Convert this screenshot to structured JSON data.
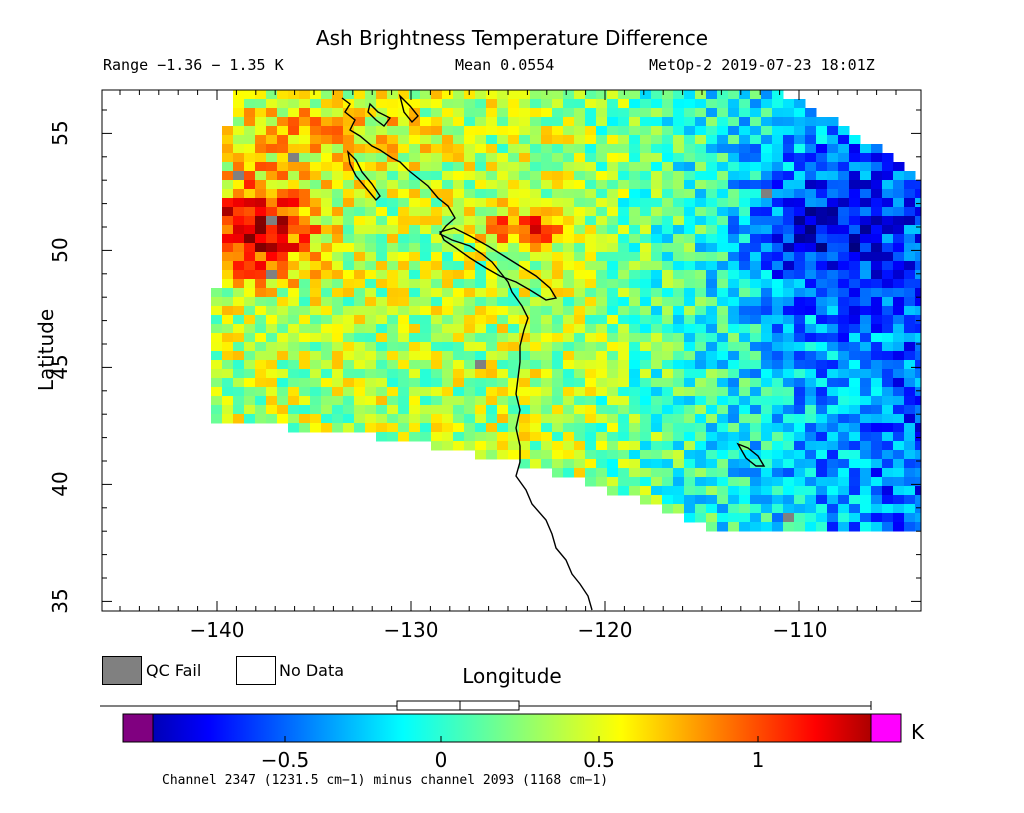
{
  "title": "Ash Brightness Temperature Difference",
  "header": {
    "range": "Range −1.36 − 1.35 K",
    "mean": "Mean 0.0554",
    "platform": "MetOp-2 2019-07-23 18:01Z"
  },
  "axes": {
    "x_label": "Longitude",
    "y_label": "Latitude",
    "x_ticks": [
      "−140",
      "−130",
      "−120",
      "−110"
    ],
    "y_ticks": [
      "55",
      "50",
      "45",
      "40",
      "35"
    ],
    "x_range": [
      -145.5,
      -104
    ],
    "y_range": [
      34.5,
      56.8
    ]
  },
  "legend": {
    "qc_fail": "QC Fail",
    "no_data": "No Data",
    "qc_fail_color": "#808080",
    "no_data_color": "#ffffff"
  },
  "colorbar": {
    "unit": "K",
    "ticks": [
      "−0.5",
      "0",
      "0.5",
      "1"
    ],
    "tick_values": [
      -0.5,
      0,
      0.5,
      1
    ],
    "range": [
      -1.36,
      1.35
    ],
    "under_color": "#800080",
    "over_color": "#ff00ff",
    "boxplot": {
      "min": -1.36,
      "q1": -0.2,
      "median": 0.06,
      "q3": 0.25,
      "max": 1.35
    }
  },
  "footnote": "Channel 2347 (1231.5 cm−1) minus channel 2093 (1168 cm−1)"
}
